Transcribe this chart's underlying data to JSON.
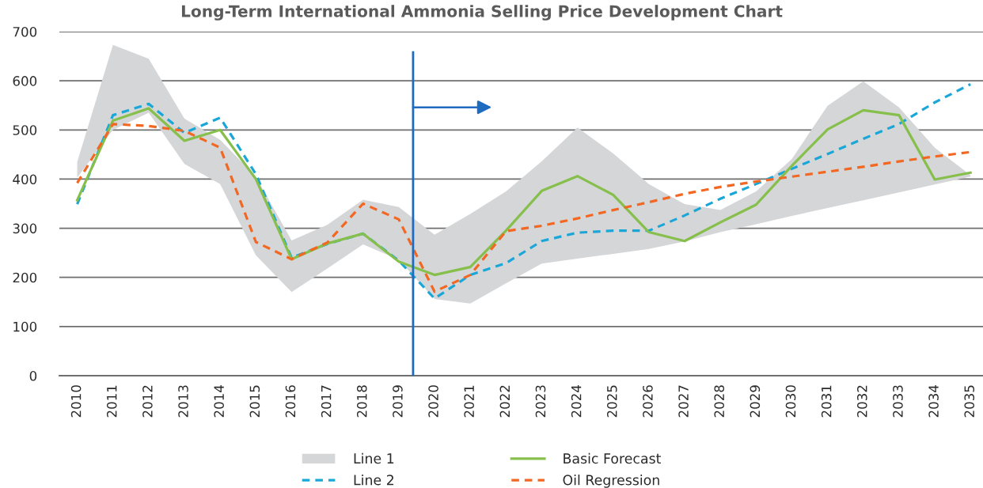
{
  "chart_data": {
    "type": "line",
    "title": "Long-Term International Ammonia Selling Price Development Chart",
    "x": [
      2010,
      2011,
      2012,
      2013,
      2014,
      2015,
      2016,
      2017,
      2018,
      2019,
      2020,
      2021,
      2022,
      2023,
      2024,
      2025,
      2026,
      2027,
      2028,
      2029,
      2030,
      2031,
      2032,
      2033,
      2034,
      2035
    ],
    "xlim": [
      2009.5,
      2035.35
    ],
    "xticks": [
      2010,
      2011,
      2012,
      2013,
      2014,
      2015,
      2016,
      2017,
      2018,
      2019,
      2020,
      2021,
      2022,
      2023,
      2024,
      2025,
      2026,
      2027,
      2028,
      2029,
      2030,
      2031,
      2032,
      2033,
      2034,
      2035
    ],
    "ylim": [
      0,
      700
    ],
    "yticks": [
      0,
      100,
      200,
      300,
      400,
      500,
      600,
      700
    ],
    "grid": "y",
    "legend": "bottom",
    "marker": "none",
    "series": [
      {
        "name": "Line 1",
        "type": "area",
        "color": "#d5d6d8",
        "values": [
          null,
          null,
          null,
          null,
          null,
          null,
          null,
          null,
          null,
          null,
          null,
          null,
          null,
          null,
          null,
          null,
          null,
          null,
          null,
          null,
          null,
          null,
          null,
          null,
          null,
          null
        ],
        "lower": [
          403,
          500,
          535,
          431,
          390,
          245,
          170,
          218,
          267,
          236,
          156,
          147,
          188,
          228,
          238,
          248,
          258,
          273,
          292,
          308,
          325,
          341,
          357,
          373,
          389,
          405
        ],
        "upper": [
          435,
          673,
          645,
          523,
          480,
          405,
          275,
          307,
          358,
          343,
          287,
          329,
          375,
          436,
          505,
          452,
          390,
          349,
          337,
          375,
          441,
          549,
          599,
          546,
          464,
          408
        ]
      },
      {
        "name": "Line 2",
        "color": "#1aa7d8",
        "line_style": "dashed",
        "values": [
          349,
          530,
          553,
          494,
          525,
          410,
          240,
          268,
          289,
          234,
          157,
          205,
          229,
          274,
          291,
          295,
          295,
          326,
          360,
          390,
          421,
          451,
          482,
          512,
          556,
          593
        ]
      },
      {
        "name": "Basic Forecast",
        "color": "#86bf4b",
        "line_style": "solid",
        "values": [
          357,
          519,
          544,
          478,
          500,
          400,
          237,
          269,
          289,
          232,
          205,
          221,
          295,
          376,
          406,
          368,
          292,
          274,
          312,
          348,
          427,
          501,
          540,
          530,
          399,
          413
        ]
      },
      {
        "name": "Oil Regression",
        "color": "#f26722",
        "line_style": "dashed",
        "values": [
          392,
          512,
          508,
          498,
          464,
          272,
          237,
          271,
          350,
          318,
          171,
          205,
          294,
          305,
          320,
          337,
          353,
          370,
          384,
          395,
          405,
          415,
          425,
          436,
          446,
          455
        ]
      }
    ],
    "ref_lines": [
      {
        "axis": "x",
        "value": 2019.4,
        "color": "#1f6bc0",
        "line_style": "solid"
      }
    ]
  }
}
